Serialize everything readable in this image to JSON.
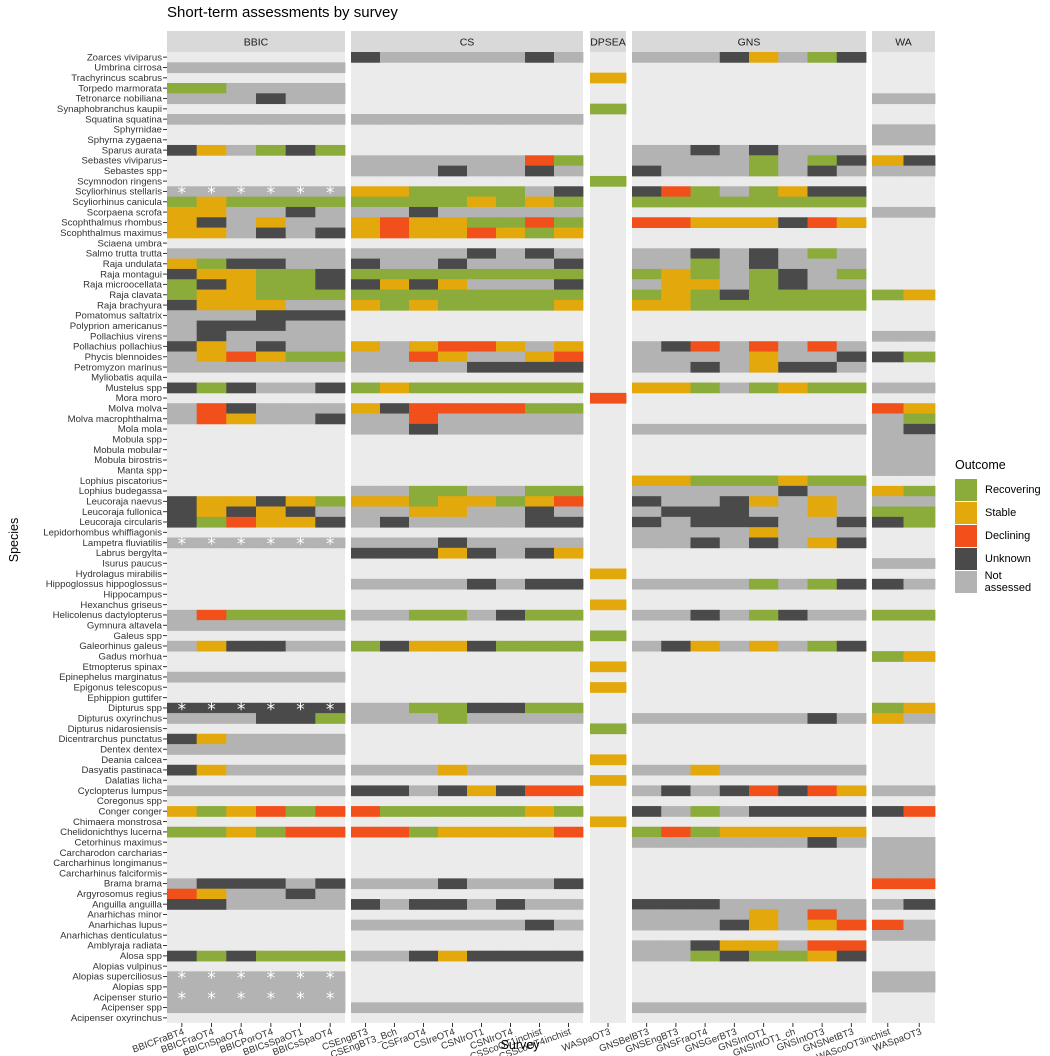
{
  "chart_data": {
    "type": "heatmap",
    "title": "Short-term assessments by survey",
    "xlabel": "Survey",
    "ylabel": "Species",
    "legend": {
      "title": "Outcome",
      "position": "right",
      "items": [
        {
          "label": "Recovering",
          "color": "#8BAC3B"
        },
        {
          "label": "Stable",
          "color": "#E3A90C"
        },
        {
          "label": "Declining",
          "color": "#F2501A"
        },
        {
          "label": "Unknown",
          "color": "#4A4A4A"
        },
        {
          "label": "Not assessed",
          "color": "#B3B3B3"
        }
      ]
    },
    "outcome_codes": {
      "R": "Recovering",
      "S": "Stable",
      "D": "Declining",
      "U": "Unknown",
      "N": "Not assessed",
      "_": "no data"
    },
    "panel_background": "#EBEBEB",
    "strip_background": "#D9D9D9",
    "species": [
      "Zoarces viviparus",
      "Umbrina cirrosa",
      "Trachyrincus scabrus",
      "Torpedo marmorata",
      "Tetronarce nobiliana",
      "Synaphobranchus kaupii",
      "Squatina squatina",
      "Sphyrnidae",
      "Sphyrna zygaena",
      "Sparus aurata",
      "Sebastes viviparus",
      "Sebastes spp",
      "Scymnodon ringens",
      "Scyliorhinus stellaris",
      "Scyliorhinus canicula",
      "Scorpaena scrofa",
      "Scophthalmus rhombus",
      "Scophthalmus maximus",
      "Sciaena umbra",
      "Salmo trutta trutta",
      "Raja undulata",
      "Raja montagui",
      "Raja microocellata",
      "Raja clavata",
      "Raja brachyura",
      "Pomatomus saltatrix",
      "Polyprion americanus",
      "Pollachius virens",
      "Pollachius pollachius",
      "Phycis blennoides",
      "Petromyzon marinus",
      "Myliobatis aquila",
      "Mustelus spp",
      "Mora moro",
      "Molva molva",
      "Molva macrophthalma",
      "Mola mola",
      "Mobula spp",
      "Mobula mobular",
      "Mobula birostris",
      "Manta spp",
      "Lophius piscatorius",
      "Lophius budegassa",
      "Leucoraja naevus",
      "Leucoraja fullonica",
      "Leucoraja circularis",
      "Lepidorhombus whiffiagonis",
      "Lampetra fluviatilis",
      "Labrus bergylta",
      "Isurus paucus",
      "Hydrolagus mirabilis",
      "Hippoglossus hippoglossus",
      "Hippocampus",
      "Hexanchus griseus",
      "Helicolenus dactylopterus",
      "Gymnura altavela",
      "Galeus spp",
      "Galeorhinus galeus",
      "Gadus morhua",
      "Etmopterus spinax",
      "Epinephelus marginatus",
      "Epigonus telescopus",
      "Ephippion guttifer",
      "Dipturus spp",
      "Dipturus oxyrinchus",
      "Dipturus nidarosiensis",
      "Dicentrarchus punctatus",
      "Dentex dentex",
      "Deania calcea",
      "Dasyatis pastinaca",
      "Dalatias licha",
      "Cyclopterus lumpus",
      "Coregonus spp",
      "Conger conger",
      "Chimaera monstrosa",
      "Chelidonichthys lucerna",
      "Cetorhinus maximus",
      "Carcharodon carcharias",
      "Carcharhinus longimanus",
      "Carcharhinus falciformis",
      "Brama brama",
      "Argyrosomus regius",
      "Anguilla anguilla",
      "Anarhichas minor",
      "Anarhichas lupus",
      "Anarhichas denticulatus",
      "Amblyraja radiata",
      "Alosa spp",
      "Alopias vulpinus",
      "Alopias superciliosus",
      "Alopias spp",
      "Acipenser sturio",
      "Acipenser spp",
      "Acipenser oxyrinchus"
    ],
    "panels": [
      {
        "name": "BBIC",
        "surveys": [
          "BBICFraBT4",
          "BBICFraOT4",
          "BBICnSpaOT4",
          "BBICPorOT4",
          "BBICsSpaOT1",
          "BBICsSpaOT4"
        ],
        "rows": {
          "Umbrina cirrosa": "NNNNNN",
          "Torpedo marmorata": "RRNNNN",
          "Tetronarce nobiliana": "NNNUNN",
          "Squatina squatina": "NNNNNN",
          "Sparus aurata": "USNRUR",
          "Scyliorhinus stellaris": "NNNNNN",
          "Scyliorhinus canicula": "RSRRRR",
          "Scorpaena scrofa": "SSNNUN",
          "Scophthalmus rhombus": "SUNSNN",
          "Scophthalmus maximus": "SSNUNU",
          "Salmo trutta trutta": "NNNNNN",
          "Raja undulata": "SRUUNN",
          "Raja montagui": "USSRRU",
          "Raja microocellata": "RUSRRU",
          "Raja clavata": "RSSRRR",
          "Raja brachyura": "USSSNN",
          "Pomatomus saltatrix": "NNNUUU",
          "Polyprion americanus": "NUUUNN",
          "Pollachius virens": "NUNNNN",
          "Pollachius pollachius": "USNUNN",
          "Phycis blennoides": "NSDSRR",
          "Petromyzon marinus": "NNNNNN",
          "Mustelus spp": "URUNNU",
          "Molva molva": "NDUNNN",
          "Molva macrophthalma": "NDSNNU",
          "Leucoraja naevus": "USSUSR",
          "Leucoraja fullonica": "USUSUN",
          "Leucoraja circularis": "URDSSU",
          "Lampetra fluviatilis": "NNNNNN",
          "Helicolenus dactylopterus": "NDRRRR",
          "Gymnura altavela": "NNNNNN",
          "Galeorhinus galeus": "NSUUNN",
          "Epinephelus marginatus": "NNNNNN",
          "Dipturus spp": "UUUUUU",
          "Dipturus oxyrinchus": "NNNUUR",
          "Dicentrarchus punctatus": "USNNNN",
          "Dentex dentex": "NNNNNN",
          "Dasyatis pastinaca": "USNNNN",
          "Cyclopterus lumpus": "NNNNNN",
          "Conger conger": "SRSDRD",
          "Chelidonichthys lucerna": "RRSRDD",
          "Brama brama": "NUUUNU",
          "Argyrosomus regius": "DSNNUN",
          "Anguilla anguilla": "UUNNNN",
          "Alosa spp": "URURRR",
          "Alopias superciliosus": "NNNNNN",
          "Alopias spp": "NNNNNN",
          "Acipenser sturio": "NNNNNN",
          "Acipenser spp": "NNNNNN"
        },
        "stars": {
          "Scyliorhinus stellaris": [
            0,
            1,
            2,
            3,
            4,
            5
          ],
          "Lampetra fluviatilis": [
            0,
            1,
            2,
            3,
            4,
            5
          ],
          "Dipturus spp": [
            0,
            1,
            2,
            3,
            4,
            5
          ],
          "Alopias superciliosus": [
            0,
            1,
            2,
            3,
            4,
            5
          ],
          "Acipenser sturio": [
            0,
            1,
            2,
            3,
            4,
            5
          ]
        }
      },
      {
        "name": "CS",
        "surveys": [
          "CSEngBT3",
          "CSEngBT3_Bch",
          "CSFraOT4",
          "CSIreOT4",
          "CSNIrOT1",
          "CSNIrOT4",
          "CSScoOT1inchist",
          "CSScoOT4inchist"
        ],
        "rows": {
          "Zoarces viviparus": "UNNNNNUN",
          "Squatina squatina": "NNNNNNNN",
          "Sebastes viviparus": "NNNNNNDR",
          "Sebastes spp": "NNNUNNUN",
          "Scyliorhinus stellaris": "SSRRRRNU",
          "Scyliorhinus canicula": "RRRRSRSR",
          "Scorpaena scrofa": "NNUNNNNN",
          "Scophthalmus rhombus": "SDSSRRDR",
          "Scophthalmus maximus": "SDSSDSRS",
          "Salmo trutta trutta": "NNNNUNUN",
          "Raja undulata": "UNNUNNNU",
          "Raja montagui": "RRRRRRRR",
          "Raja microocellata": "USUSNNNU",
          "Raja clavata": "RRRRRRRR",
          "Raja brachyura": "SRSRRRRS",
          "Pollachius pollachius": "SNSDDSNS",
          "Phycis blennoides": "NNDSNNSD",
          "Petromyzon marinus": "NNNNUUUU",
          "Mustelus spp": "RSRRRRRR",
          "Molva molva": "SUDDDDRR",
          "Molva macrophthalma": "NNDNNNNN",
          "Mola mola": "NNUNNNNN",
          "Lophius budegassa": "NNRRNNRR",
          "Leucoraja naevus": "SSRSSRSD",
          "Leucoraja fullonica": "NNSSNNUN",
          "Leucoraja circularis": "NUNNNNUU",
          "Lampetra fluviatilis": "NNNUNNNN",
          "Labrus bergylta": "UUUSUNUS",
          "Hippoglossus hippoglossus": "NNNNUNUU",
          "Helicolenus dactylopterus": "NNRRNURR",
          "Galeorhinus galeus": "RUSSURRR",
          "Dipturus spp": "NNRRUURR",
          "Dipturus oxyrinchus": "NNNRNNNN",
          "Dasyatis pastinaca": "NNNSNNNN",
          "Cyclopterus lumpus": "UUNUSUDD",
          "Conger conger": "DRRRRRSR",
          "Chelidonichthys lucerna": "DDRSSSSD",
          "Brama brama": "NNNUNNNU",
          "Anguilla anguilla": "UNUUNUNN",
          "Anarhichas lupus": "NNNNNNUN",
          "Alosa spp": "NNUSUUUU",
          "Acipenser spp": "NNNNNNNN"
        },
        "stars": {}
      },
      {
        "name": "DPSEA",
        "surveys": [
          "WASpaOT3"
        ],
        "rows": {
          "Trachyrincus scabrus": "S",
          "Synaphobranchus kaupii": "R",
          "Scymnodon ringens": "R",
          "Mora moro": "D",
          "Hydrolagus mirabilis": "S",
          "Hexanchus griseus": "S",
          "Galeus spp": "R",
          "Etmopterus spinax": "S",
          "Epigonus telescopus": "S",
          "Dipturus nidarosiensis": "R",
          "Deania calcea": "S",
          "Dalatias licha": "S",
          "Chimaera monstrosa": "S"
        },
        "stars": {}
      },
      {
        "name": "GNS",
        "surveys": [
          "GNSBelBT3",
          "GNSEngBT3",
          "GNSFraOT4",
          "GNSGerBT3",
          "GNSIntOT1",
          "GNSIntOT1_ch",
          "GNSIntOT3",
          "GNSNetBT3"
        ],
        "rows": {
          "Zoarces viviparus": "NNNUSNRU",
          "Sparus aurata": "NNUNUNNN",
          "Sebastes viviparus": "NNNNRNRU",
          "Sebastes spp": "UNNNRNUN",
          "Scyliorhinus stellaris": "UDRNRSUU",
          "Scyliorhinus canicula": "RRRRRRRR",
          "Scophthalmus rhombus": "DDSSSUDS",
          "Salmo trutta trutta": "NNUNUNRN",
          "Raja undulata": "NNRNUNNN",
          "Raja montagui": "RSRNRUNR",
          "Raja microocellata": "NSSNRUNN",
          "Raja clavata": "RSRURRRR",
          "Raja brachyura": "SSRRRRRR",
          "Pollachius pollachius": "NUDNDNDN",
          "Phycis blennoides": "NNNNSNNU",
          "Petromyzon marinus": "NNUNSUUN",
          "Mustelus spp": "SSRNRSRR",
          "Mola mola": "NNNNNNNN",
          "Lophius piscatorius": "SSRRRSRR",
          "Lophius budegassa": "NNNNNUNN",
          "Leucoraja naevus": "UNNUSNSN",
          "Leucoraja fullonica": "NUUUNNSN",
          "Leucoraja circularis": "UNUUUNNU",
          "Lepidorhombus whiffiagonis": "NNNNSNNN",
          "Lampetra fluviatilis": "NNUNUNSU",
          "Hippoglossus hippoglossus": "NNNNRNRU",
          "Helicolenus dactylopterus": "NNUNRUNN",
          "Galeorhinus galeus": "NUSNSNRU",
          "Dipturus oxyrinchus": "NNNNNNUN",
          "Dasyatis pastinaca": "NNSNNNNN",
          "Cyclopterus lumpus": "NUNUDUDS",
          "Conger conger": "UNRNUUUU",
          "Chelidonichthys lucerna": "RDRSSSSS",
          "Cetorhinus maximus": "NNNNNNUN",
          "Anguilla anguilla": "UUUNNNNN",
          "Anarhichas minor": "NNNNSNDN",
          "Anarhichas lupus": "NNNUSNSD",
          "Amblyraja radiata": "NNUSSNDD",
          "Alosa spp": "NNRURRSU",
          "Acipenser spp": "NNNNNNNN"
        },
        "stars": {}
      },
      {
        "name": "WA",
        "surveys": [
          "WAScoOT3inchist",
          "WASpaOT3"
        ],
        "rows": {
          "Tetronarce nobiliana": "NN",
          "Sphyrnidae": "NN",
          "Sphyrna zygaena": "NN",
          "Sebastes viviparus": "SU",
          "Sebastes spp": "NN",
          "Scorpaena scrofa": "NN",
          "Raja clavata": "RS",
          "Pollachius virens": "NN",
          "Phycis blennoides": "UR",
          "Mustelus spp": "NN",
          "Molva molva": "DS",
          "Molva macrophthalma": "NR",
          "Mola mola": "NU",
          "Mobula spp": "NN",
          "Mobula mobular": "NN",
          "Mobula birostris": "NN",
          "Manta spp": "NN",
          "Lophius budegassa": "SR",
          "Leucoraja naevus": "NN",
          "Leucoraja fullonica": "RR",
          "Leucoraja circularis": "UR",
          "Isurus paucus": "NN",
          "Hippoglossus hippoglossus": "UN",
          "Helicolenus dactylopterus": "RR",
          "Gadus morhua": "RS",
          "Dipturus spp": "RS",
          "Dipturus oxyrinchus": "SN",
          "Cyclopterus lumpus": "NN",
          "Conger conger": "UD",
          "Cetorhinus maximus": "NN",
          "Carcharodon carcharias": "NN",
          "Carcharhinus longimanus": "NN",
          "Carcharhinus falciformis": "NN",
          "Brama brama": "DD",
          "Anguilla anguilla": "NU",
          "Anarhichas lupus": "DN",
          "Anarhichas denticulatus": "NN",
          "Alopias superciliosus": "NN",
          "Alopias spp": "NN"
        },
        "stars": {}
      }
    ]
  }
}
